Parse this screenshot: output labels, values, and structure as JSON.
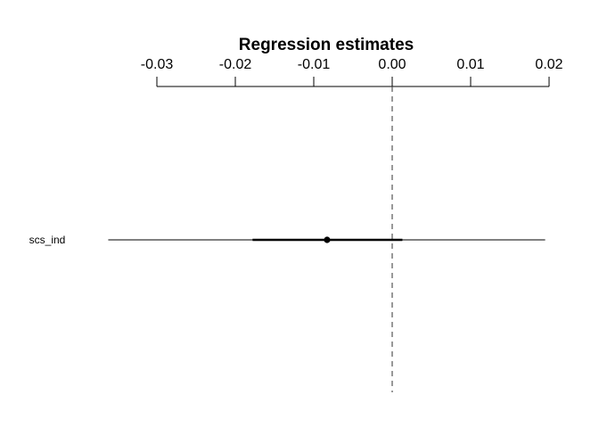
{
  "chart_data": {
    "type": "coefficient-plot",
    "title": "Regression estimates",
    "axis_position": "top",
    "xlim": [
      -0.03,
      0.02
    ],
    "ticks": [
      -0.03,
      -0.02,
      -0.01,
      0.0,
      0.01,
      0.02
    ],
    "tick_labels": [
      "-0.03",
      "-0.02",
      "-0.01",
      "0.00",
      "0.01",
      "0.02"
    ],
    "reference_line": {
      "x": 0,
      "style": "dashed",
      "color": "#555555"
    },
    "grid": false,
    "series": [
      {
        "name": "scs_ind",
        "estimate": -0.0083,
        "inner_interval": [
          -0.0178,
          0.0013
        ],
        "outer_interval": [
          -0.0362,
          0.0195
        ]
      }
    ],
    "colors": {
      "line": "#000000",
      "point": "#000000"
    }
  }
}
